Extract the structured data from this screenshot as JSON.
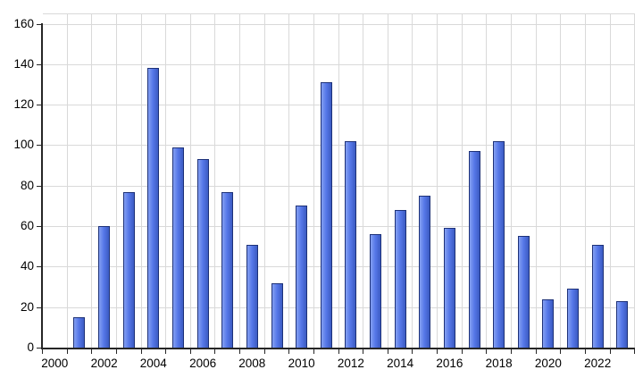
{
  "chart_data": {
    "type": "bar",
    "title": "",
    "xlabel": "",
    "ylabel": "",
    "x": [
      2001,
      2002,
      2003,
      2004,
      2005,
      2006,
      2007,
      2008,
      2009,
      2010,
      2011,
      2012,
      2013,
      2014,
      2015,
      2016,
      2017,
      2018,
      2019,
      2020,
      2021,
      2022,
      2023
    ],
    "values": [
      15,
      60,
      77,
      138,
      99,
      93,
      77,
      51,
      32,
      70,
      131,
      102,
      56,
      68,
      75,
      59,
      97,
      102,
      55,
      24,
      29,
      51,
      23
    ],
    "x_axis_start_year": 2000,
    "x_axis_slot_count": 24,
    "x_tick_labels": [
      "2000",
      "2002",
      "2004",
      "2006",
      "2008",
      "2010",
      "2012",
      "2014",
      "2016",
      "2018",
      "2020",
      "2022"
    ],
    "x_tick_label_years": [
      2000,
      2002,
      2004,
      2006,
      2008,
      2010,
      2012,
      2014,
      2016,
      2018,
      2020,
      2022
    ],
    "y_tick_labels": [
      "0",
      "20",
      "40",
      "60",
      "80",
      "100",
      "120",
      "140",
      "160"
    ],
    "y_tick_values": [
      0,
      20,
      40,
      60,
      80,
      100,
      120,
      140,
      160
    ],
    "ylim": [
      0,
      160
    ],
    "y_tick_step": 20,
    "grid": true,
    "legend": false,
    "colors": {
      "background": "#ffffff",
      "gridline": "#d9d9d9",
      "axis": "#262626",
      "text": "#000000",
      "bar_border": "#1d3178",
      "bar_fill_light": "#84a0f2",
      "bar_fill_mid": "#5577e8",
      "bar_fill_dark": "#3c5bc2"
    }
  }
}
